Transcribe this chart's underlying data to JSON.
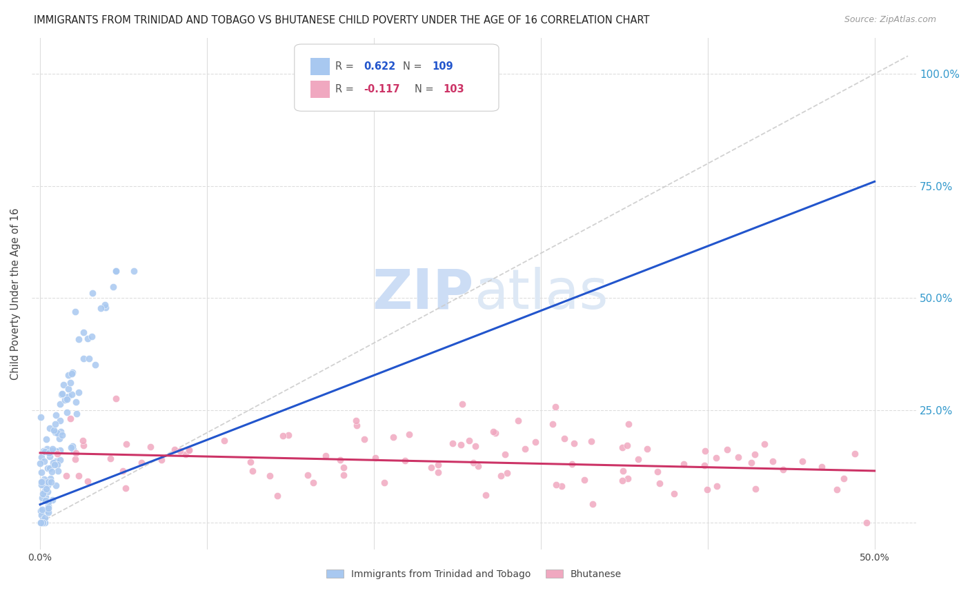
{
  "title": "IMMIGRANTS FROM TRINIDAD AND TOBAGO VS BHUTANESE CHILD POVERTY UNDER THE AGE OF 16 CORRELATION CHART",
  "source": "Source: ZipAtlas.com",
  "ylabel": "Child Poverty Under the Age of 16",
  "legend_label1": "Immigrants from Trinidad and Tobago",
  "legend_label2": "Bhutanese",
  "blue_color": "#a8c8f0",
  "pink_color": "#f0a8c0",
  "blue_line_color": "#2255cc",
  "pink_line_color": "#cc3366",
  "dashed_line_color": "#cccccc",
  "title_fontsize": 10.5,
  "source_fontsize": 9,
  "watermark_color": "#ccddf5",
  "R_blue": 0.622,
  "N_blue": 109,
  "R_pink": -0.117,
  "N_pink": 103,
  "blue_line_x0": 0.0,
  "blue_line_y0": 0.04,
  "blue_line_x1": 0.5,
  "blue_line_y1": 0.76,
  "pink_line_x0": 0.0,
  "pink_line_y0": 0.155,
  "pink_line_x1": 0.5,
  "pink_line_y1": 0.115,
  "xlim": [
    -0.005,
    0.525
  ],
  "ylim": [
    -0.06,
    1.08
  ],
  "seed": 42
}
